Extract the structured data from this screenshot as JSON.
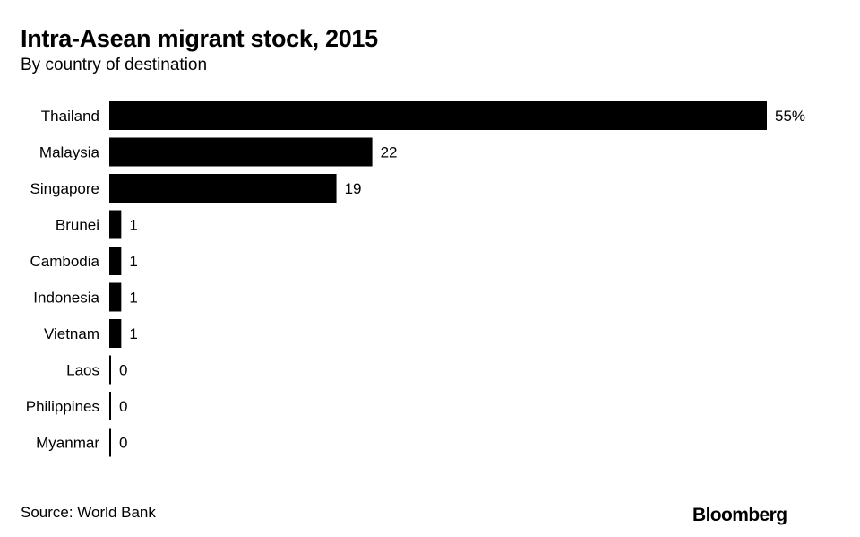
{
  "chart_data": {
    "type": "bar",
    "orientation": "horizontal",
    "title": "Intra-Asean migrant stock, 2015",
    "subtitle": "By country of destination",
    "categories": [
      "Thailand",
      "Malaysia",
      "Singapore",
      "Brunei",
      "Cambodia",
      "Indonesia",
      "Vietnam",
      "Laos",
      "Philippines",
      "Myanmar"
    ],
    "values": [
      55,
      22,
      19,
      1,
      1,
      1,
      1,
      0,
      0,
      0
    ],
    "value_labels": [
      "55%",
      "22",
      "19",
      "1",
      "1",
      "1",
      "1",
      "0",
      "0",
      "0"
    ],
    "unit": "%",
    "xlim": [
      0,
      55
    ],
    "grid": false,
    "bar_color": "#000000"
  },
  "footer": {
    "source": "Source: World Bank",
    "logo": "Bloomberg"
  }
}
